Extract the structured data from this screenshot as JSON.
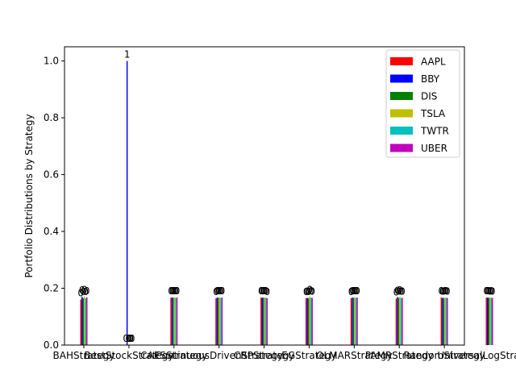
{
  "chart_data": {
    "type": "bar",
    "title": "",
    "xlabel": "",
    "ylabel": "Portfolio Distributions by Strategy",
    "ylim": [
      0,
      1.05
    ],
    "y_ticks": [
      "0.0",
      "0.2",
      "0.4",
      "0.6",
      "0.8",
      "1.0"
    ],
    "grid": false,
    "legend_position": "top-right",
    "categories": [
      "BAHStrategy",
      "BestStockStrategy",
      "CAESStrategy",
      "ContinuousDrivenStrategy",
      "CRPStrategy",
      "EGStrategy",
      "OLMARStrategy",
      "PAMRStrategy",
      "RandomStrategy",
      "UniversalLogStrategy"
    ],
    "series": [
      {
        "name": "AAPL",
        "color": "#ff0000",
        "values": [
          0.16,
          0,
          0.167,
          0.165,
          0.167,
          0.165,
          0.165,
          0.163,
          0.168,
          0.167
        ]
      },
      {
        "name": "BBY",
        "color": "#0000ff",
        "values": [
          0.17,
          1.0,
          0.167,
          0.167,
          0.167,
          0.166,
          0.167,
          0.169,
          0.166,
          0.167
        ]
      },
      {
        "name": "DIS",
        "color": "#008000",
        "values": [
          0.165,
          0,
          0.167,
          0.167,
          0.167,
          0.165,
          0.167,
          0.166,
          0.166,
          0.167
        ]
      },
      {
        "name": "TSLA",
        "color": "#bfbf00",
        "values": [
          0.172,
          0,
          0.167,
          0.167,
          0.167,
          0.171,
          0.167,
          0.17,
          0.167,
          0.166
        ]
      },
      {
        "name": "TWTR",
        "color": "#00bfbf",
        "values": [
          0.165,
          0,
          0.167,
          0.167,
          0.167,
          0.167,
          0.167,
          0.166,
          0.167,
          0.167
        ]
      },
      {
        "name": "UBER",
        "color": "#bf00bf",
        "values": [
          0.168,
          0,
          0.167,
          0.167,
          0.165,
          0.166,
          0.167,
          0.166,
          0.166,
          0.166
        ]
      }
    ],
    "bar_labels": [
      [
        "0",
        "0",
        "0",
        "0",
        "0",
        "0"
      ],
      [
        "0",
        "1",
        "0",
        "0",
        "0",
        "0"
      ],
      [
        "0",
        "0",
        "0",
        "0",
        "0",
        "0"
      ],
      [
        "0",
        "0",
        "0",
        "0",
        "0",
        "0"
      ],
      [
        "0",
        "0",
        "0",
        "0",
        "0",
        "0"
      ],
      [
        "0",
        "0",
        "0",
        "0",
        "0",
        "0"
      ],
      [
        "0",
        "0",
        "0",
        "0",
        "0",
        "0"
      ],
      [
        "0",
        "0",
        "0",
        "0",
        "0",
        "0"
      ],
      [
        "0",
        "0",
        "0",
        "0",
        "0",
        "0"
      ],
      [
        "0",
        "0",
        "0",
        "0",
        "0",
        "0"
      ]
    ]
  }
}
